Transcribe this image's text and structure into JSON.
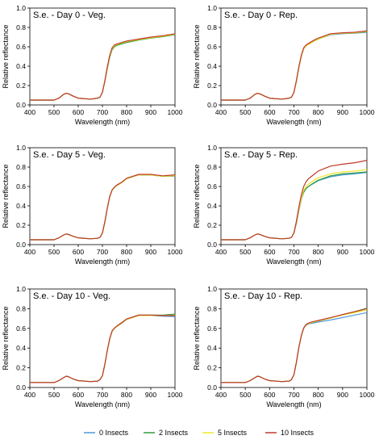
{
  "figure": {
    "legend": [
      {
        "label": "0 Insects",
        "color": "#4f9bd9"
      },
      {
        "label": "2 Insects",
        "color": "#2e9a3e"
      },
      {
        "label": "5 Insects",
        "color": "#f2e52a"
      },
      {
        "label": "10 Insects",
        "color": "#c0392b"
      }
    ]
  },
  "chart_data": [
    {
      "type": "line",
      "title": "S.e. - Day 0 - Veg.",
      "xlabel": "Wavelength (nm)",
      "ylabel": "Relative reflectance",
      "xlim": [
        400,
        1000
      ],
      "ylim": [
        0,
        1.0
      ],
      "xticks": [
        400,
        500,
        600,
        700,
        800,
        900,
        1000
      ],
      "yticks": [
        0.0,
        0.2,
        0.4,
        0.6,
        0.8,
        1.0
      ],
      "x": [
        400,
        450,
        500,
        520,
        540,
        550,
        560,
        580,
        600,
        650,
        680,
        690,
        700,
        710,
        720,
        730,
        740,
        750,
        760,
        780,
        800,
        850,
        900,
        950,
        1000
      ],
      "series": [
        {
          "name": "0 Insects",
          "values": [
            0.05,
            0.05,
            0.05,
            0.07,
            0.11,
            0.12,
            0.115,
            0.09,
            0.07,
            0.06,
            0.07,
            0.08,
            0.13,
            0.24,
            0.38,
            0.5,
            0.58,
            0.61,
            0.625,
            0.64,
            0.655,
            0.675,
            0.695,
            0.71,
            0.73
          ]
        },
        {
          "name": "2 Insects",
          "values": [
            0.05,
            0.05,
            0.05,
            0.07,
            0.11,
            0.12,
            0.115,
            0.09,
            0.07,
            0.06,
            0.07,
            0.08,
            0.13,
            0.24,
            0.37,
            0.49,
            0.57,
            0.6,
            0.615,
            0.63,
            0.645,
            0.67,
            0.69,
            0.705,
            0.725
          ]
        },
        {
          "name": "5 Insects",
          "values": [
            0.05,
            0.05,
            0.05,
            0.07,
            0.11,
            0.12,
            0.115,
            0.09,
            0.07,
            0.06,
            0.07,
            0.08,
            0.13,
            0.24,
            0.38,
            0.5,
            0.58,
            0.61,
            0.625,
            0.64,
            0.655,
            0.675,
            0.695,
            0.71,
            0.73
          ]
        },
        {
          "name": "10 Insects",
          "values": [
            0.05,
            0.05,
            0.05,
            0.07,
            0.11,
            0.12,
            0.115,
            0.09,
            0.07,
            0.06,
            0.07,
            0.08,
            0.13,
            0.25,
            0.39,
            0.51,
            0.59,
            0.62,
            0.63,
            0.645,
            0.66,
            0.68,
            0.7,
            0.715,
            0.735
          ]
        }
      ]
    },
    {
      "type": "line",
      "title": "S.e. - Day 0 - Rep.",
      "xlabel": "Wavelength (nm)",
      "ylabel": "Relative reflectance",
      "xlim": [
        400,
        1000
      ],
      "ylim": [
        0,
        1.0
      ],
      "xticks": [
        400,
        500,
        600,
        700,
        800,
        900,
        1000
      ],
      "yticks": [
        0.0,
        0.2,
        0.4,
        0.6,
        0.8,
        1.0
      ],
      "x": [
        400,
        450,
        500,
        520,
        540,
        550,
        560,
        580,
        600,
        650,
        680,
        690,
        700,
        710,
        720,
        730,
        740,
        750,
        760,
        780,
        800,
        850,
        900,
        950,
        1000
      ],
      "series": [
        {
          "name": "0 Insects",
          "values": [
            0.05,
            0.05,
            0.05,
            0.07,
            0.11,
            0.12,
            0.115,
            0.09,
            0.07,
            0.06,
            0.07,
            0.08,
            0.13,
            0.24,
            0.38,
            0.5,
            0.58,
            0.61,
            0.625,
            0.655,
            0.68,
            0.725,
            0.735,
            0.74,
            0.75
          ]
        },
        {
          "name": "2 Insects",
          "values": [
            0.05,
            0.05,
            0.05,
            0.07,
            0.11,
            0.12,
            0.115,
            0.09,
            0.07,
            0.06,
            0.07,
            0.08,
            0.13,
            0.24,
            0.38,
            0.5,
            0.58,
            0.61,
            0.625,
            0.655,
            0.68,
            0.73,
            0.74,
            0.745,
            0.755
          ]
        },
        {
          "name": "5 Insects",
          "values": [
            0.05,
            0.05,
            0.05,
            0.07,
            0.11,
            0.12,
            0.115,
            0.09,
            0.07,
            0.06,
            0.07,
            0.08,
            0.13,
            0.24,
            0.38,
            0.5,
            0.58,
            0.61,
            0.625,
            0.655,
            0.68,
            0.73,
            0.74,
            0.745,
            0.76
          ]
        },
        {
          "name": "10 Insects",
          "values": [
            0.05,
            0.05,
            0.05,
            0.07,
            0.11,
            0.12,
            0.115,
            0.09,
            0.07,
            0.06,
            0.07,
            0.08,
            0.13,
            0.25,
            0.39,
            0.51,
            0.59,
            0.62,
            0.635,
            0.665,
            0.69,
            0.735,
            0.745,
            0.75,
            0.765
          ]
        }
      ]
    },
    {
      "type": "line",
      "title": "S.e. - Day 5 - Veg.",
      "xlabel": "Wavelength (nm)",
      "ylabel": "Relative reflectance",
      "xlim": [
        400,
        1000
      ],
      "ylim": [
        0,
        1.0
      ],
      "xticks": [
        400,
        500,
        600,
        700,
        800,
        900,
        1000
      ],
      "yticks": [
        0.0,
        0.2,
        0.4,
        0.6,
        0.8,
        1.0
      ],
      "x": [
        400,
        450,
        500,
        520,
        540,
        550,
        560,
        580,
        600,
        650,
        680,
        690,
        700,
        710,
        720,
        730,
        740,
        750,
        760,
        780,
        800,
        850,
        900,
        950,
        1000
      ],
      "series": [
        {
          "name": "0 Insects",
          "values": [
            0.05,
            0.05,
            0.05,
            0.07,
            0.1,
            0.11,
            0.105,
            0.085,
            0.07,
            0.06,
            0.065,
            0.075,
            0.12,
            0.23,
            0.37,
            0.49,
            0.56,
            0.59,
            0.61,
            0.64,
            0.68,
            0.72,
            0.72,
            0.705,
            0.705
          ]
        },
        {
          "name": "2 Insects",
          "values": [
            0.05,
            0.05,
            0.05,
            0.07,
            0.1,
            0.11,
            0.105,
            0.085,
            0.07,
            0.06,
            0.065,
            0.075,
            0.12,
            0.23,
            0.37,
            0.49,
            0.56,
            0.59,
            0.61,
            0.64,
            0.68,
            0.72,
            0.72,
            0.705,
            0.71
          ]
        },
        {
          "name": "5 Insects",
          "values": [
            0.05,
            0.05,
            0.05,
            0.07,
            0.1,
            0.11,
            0.105,
            0.085,
            0.07,
            0.06,
            0.065,
            0.075,
            0.12,
            0.23,
            0.37,
            0.49,
            0.56,
            0.59,
            0.61,
            0.64,
            0.68,
            0.72,
            0.72,
            0.705,
            0.71
          ]
        },
        {
          "name": "10 Insects",
          "values": [
            0.05,
            0.05,
            0.05,
            0.07,
            0.1,
            0.11,
            0.105,
            0.085,
            0.07,
            0.06,
            0.065,
            0.075,
            0.12,
            0.235,
            0.375,
            0.495,
            0.565,
            0.595,
            0.615,
            0.645,
            0.685,
            0.725,
            0.725,
            0.71,
            0.72
          ]
        }
      ]
    },
    {
      "type": "line",
      "title": "S.e. - Day 5 - Rep.",
      "xlabel": "Wavelength (nm)",
      "ylabel": "Relative reflectance",
      "xlim": [
        400,
        1000
      ],
      "ylim": [
        0,
        1.0
      ],
      "xticks": [
        400,
        500,
        600,
        700,
        800,
        900,
        1000
      ],
      "yticks": [
        0.0,
        0.2,
        0.4,
        0.6,
        0.8,
        1.0
      ],
      "x": [
        400,
        450,
        500,
        520,
        540,
        550,
        560,
        580,
        600,
        650,
        680,
        690,
        700,
        710,
        720,
        730,
        740,
        750,
        760,
        780,
        800,
        850,
        900,
        950,
        1000
      ],
      "series": [
        {
          "name": "0 Insects",
          "values": [
            0.05,
            0.05,
            0.05,
            0.07,
            0.1,
            0.11,
            0.105,
            0.085,
            0.07,
            0.06,
            0.065,
            0.075,
            0.12,
            0.22,
            0.35,
            0.47,
            0.54,
            0.58,
            0.6,
            0.63,
            0.66,
            0.7,
            0.72,
            0.73,
            0.745
          ]
        },
        {
          "name": "2 Insects",
          "values": [
            0.05,
            0.05,
            0.05,
            0.07,
            0.1,
            0.11,
            0.105,
            0.085,
            0.07,
            0.06,
            0.065,
            0.075,
            0.12,
            0.22,
            0.35,
            0.47,
            0.54,
            0.58,
            0.6,
            0.635,
            0.665,
            0.71,
            0.73,
            0.74,
            0.75
          ]
        },
        {
          "name": "5 Insects",
          "values": [
            0.05,
            0.05,
            0.05,
            0.07,
            0.1,
            0.11,
            0.105,
            0.085,
            0.07,
            0.06,
            0.065,
            0.075,
            0.12,
            0.23,
            0.36,
            0.48,
            0.56,
            0.6,
            0.625,
            0.66,
            0.69,
            0.73,
            0.75,
            0.76,
            0.775
          ]
        },
        {
          "name": "10 Insects",
          "values": [
            0.05,
            0.05,
            0.05,
            0.07,
            0.1,
            0.11,
            0.105,
            0.085,
            0.07,
            0.06,
            0.065,
            0.075,
            0.12,
            0.24,
            0.38,
            0.51,
            0.6,
            0.65,
            0.68,
            0.72,
            0.76,
            0.81,
            0.83,
            0.845,
            0.87
          ]
        }
      ]
    },
    {
      "type": "line",
      "title": "S.e. - Day 10 - Veg.",
      "xlabel": "Wavelength (nm)",
      "ylabel": "Relative reflectance",
      "xlim": [
        400,
        1000
      ],
      "ylim": [
        0,
        1.0
      ],
      "xticks": [
        400,
        500,
        600,
        700,
        800,
        900,
        1000
      ],
      "yticks": [
        0.0,
        0.2,
        0.4,
        0.6,
        0.8,
        1.0
      ],
      "x": [
        400,
        450,
        500,
        520,
        540,
        550,
        560,
        580,
        600,
        650,
        680,
        690,
        700,
        710,
        720,
        730,
        740,
        750,
        760,
        780,
        800,
        850,
        900,
        950,
        1000
      ],
      "series": [
        {
          "name": "0 Insects",
          "values": [
            0.05,
            0.05,
            0.05,
            0.07,
            0.1,
            0.115,
            0.11,
            0.085,
            0.07,
            0.06,
            0.065,
            0.08,
            0.12,
            0.23,
            0.37,
            0.49,
            0.57,
            0.6,
            0.62,
            0.65,
            0.69,
            0.73,
            0.73,
            0.725,
            0.72
          ]
        },
        {
          "name": "2 Insects",
          "values": [
            0.05,
            0.05,
            0.05,
            0.07,
            0.1,
            0.115,
            0.11,
            0.085,
            0.07,
            0.06,
            0.065,
            0.08,
            0.12,
            0.23,
            0.37,
            0.49,
            0.57,
            0.6,
            0.62,
            0.655,
            0.695,
            0.735,
            0.735,
            0.735,
            0.745
          ]
        },
        {
          "name": "5 Insects",
          "values": [
            0.05,
            0.05,
            0.05,
            0.07,
            0.1,
            0.115,
            0.11,
            0.085,
            0.07,
            0.06,
            0.065,
            0.08,
            0.12,
            0.23,
            0.37,
            0.49,
            0.57,
            0.6,
            0.62,
            0.655,
            0.69,
            0.73,
            0.73,
            0.73,
            0.735
          ]
        },
        {
          "name": "10 Insects",
          "values": [
            0.05,
            0.05,
            0.05,
            0.07,
            0.1,
            0.115,
            0.11,
            0.085,
            0.07,
            0.06,
            0.065,
            0.08,
            0.12,
            0.235,
            0.375,
            0.495,
            0.575,
            0.605,
            0.625,
            0.66,
            0.695,
            0.735,
            0.735,
            0.73,
            0.73
          ]
        }
      ]
    },
    {
      "type": "line",
      "title": "S.e. - Day 10 - Rep.",
      "xlabel": "Wavelength (nm)",
      "ylabel": "Relative reflectance",
      "xlim": [
        400,
        1000
      ],
      "ylim": [
        0,
        1.0
      ],
      "xticks": [
        400,
        500,
        600,
        700,
        800,
        900,
        1000
      ],
      "yticks": [
        0.0,
        0.2,
        0.4,
        0.6,
        0.8,
        1.0
      ],
      "x": [
        400,
        450,
        500,
        520,
        540,
        550,
        560,
        580,
        600,
        650,
        680,
        690,
        700,
        710,
        720,
        730,
        740,
        750,
        760,
        780,
        800,
        850,
        900,
        950,
        1000
      ],
      "series": [
        {
          "name": "0 Insects",
          "values": [
            0.05,
            0.05,
            0.05,
            0.07,
            0.1,
            0.115,
            0.11,
            0.085,
            0.07,
            0.06,
            0.065,
            0.08,
            0.13,
            0.25,
            0.4,
            0.52,
            0.6,
            0.63,
            0.645,
            0.655,
            0.665,
            0.685,
            0.71,
            0.735,
            0.76
          ]
        },
        {
          "name": "2 Insects",
          "values": [
            0.05,
            0.05,
            0.05,
            0.07,
            0.1,
            0.115,
            0.11,
            0.085,
            0.07,
            0.06,
            0.065,
            0.08,
            0.13,
            0.25,
            0.4,
            0.52,
            0.6,
            0.635,
            0.65,
            0.665,
            0.675,
            0.705,
            0.74,
            0.77,
            0.805
          ]
        },
        {
          "name": "5 Insects",
          "values": [
            0.05,
            0.05,
            0.05,
            0.07,
            0.1,
            0.115,
            0.11,
            0.085,
            0.07,
            0.06,
            0.065,
            0.08,
            0.13,
            0.25,
            0.4,
            0.52,
            0.6,
            0.635,
            0.65,
            0.665,
            0.675,
            0.705,
            0.735,
            0.76,
            0.79
          ]
        },
        {
          "name": "10 Insects",
          "values": [
            0.05,
            0.05,
            0.05,
            0.07,
            0.1,
            0.115,
            0.11,
            0.085,
            0.07,
            0.06,
            0.065,
            0.08,
            0.13,
            0.255,
            0.405,
            0.525,
            0.605,
            0.64,
            0.655,
            0.67,
            0.68,
            0.71,
            0.74,
            0.77,
            0.8
          ]
        }
      ]
    }
  ]
}
